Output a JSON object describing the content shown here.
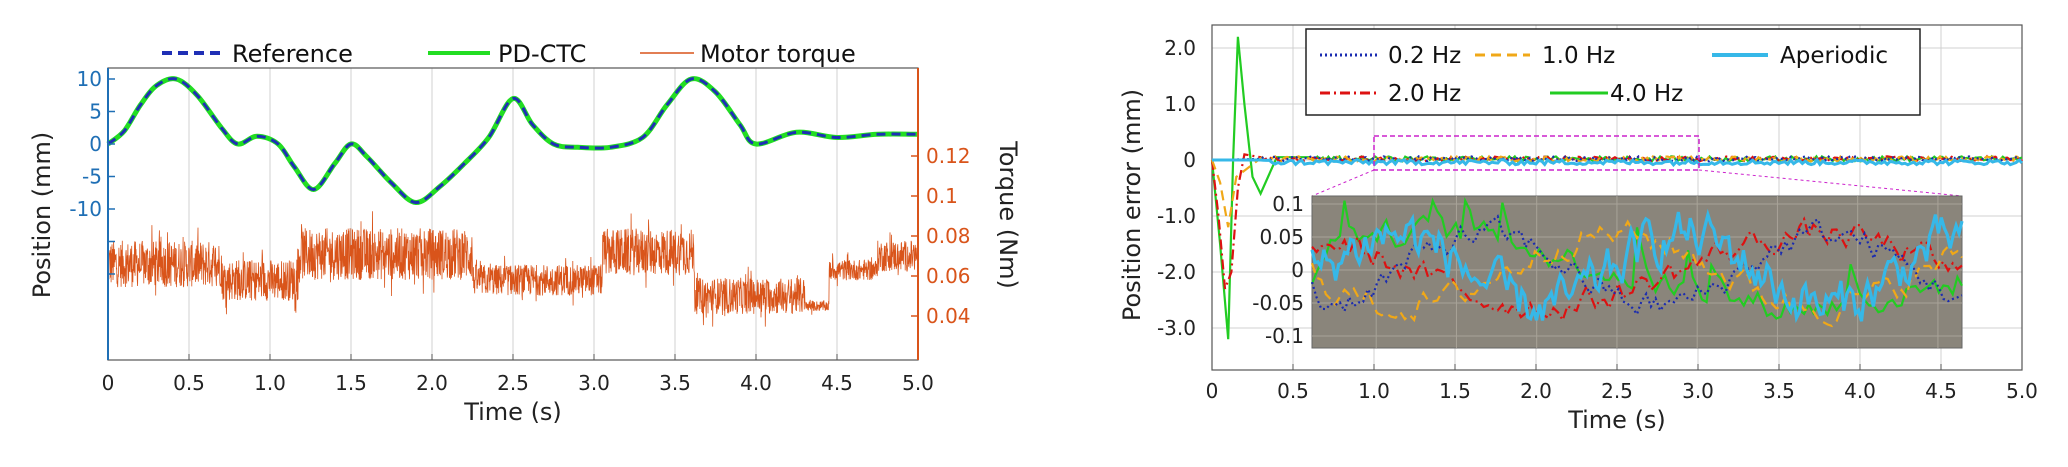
{
  "chart_data": [
    {
      "type": "line",
      "xlabel": "Time (s)",
      "ylabel_left": "Position (mm)",
      "ylabel_right": "Torque (Nm)",
      "xlim": [
        0,
        5
      ],
      "x_ticks": [
        "0",
        "0.5",
        "1.0",
        "1.5",
        "2.0",
        "2.5",
        "3.0",
        "3.5",
        "4.0",
        "4.5",
        "5.0"
      ],
      "y_left_ticks": [
        "10",
        "5",
        "0",
        "-5",
        "-10"
      ],
      "y_right_ticks": [
        "0.12",
        "0.1",
        "0.08",
        "0.06",
        "0.04"
      ],
      "legend": {
        "placement": "top",
        "items": [
          {
            "name": "Reference",
            "color": "#1f2fb5",
            "style": "dashed"
          },
          {
            "name": "PD-CTC",
            "color": "#22dd22",
            "style": "solid"
          },
          {
            "name": "Motor torque",
            "color": "#d9541a",
            "style": "solid"
          }
        ]
      },
      "series": [
        {
          "name": "Reference",
          "axis": "left",
          "x": [
            0,
            0.1,
            0.2,
            0.3,
            0.42,
            0.55,
            0.7,
            0.8,
            0.92,
            1.05,
            1.15,
            1.27,
            1.4,
            1.5,
            1.6,
            1.75,
            1.9,
            2.05,
            2.2,
            2.35,
            2.5,
            2.62,
            2.75,
            2.9,
            3.1,
            3.3,
            3.45,
            3.6,
            3.75,
            3.9,
            4.0,
            4.25,
            4.5,
            4.75,
            5.0
          ],
          "y": [
            0,
            2,
            6,
            9,
            10,
            7.5,
            2.5,
            0,
            1.2,
            0,
            -3.5,
            -7,
            -3,
            0,
            -2,
            -6,
            -9,
            -6.5,
            -3,
            1,
            7,
            3,
            0,
            -0.5,
            -0.5,
            1,
            6,
            10,
            8,
            3,
            0,
            1.8,
            1,
            1.5,
            1.5
          ]
        },
        {
          "name": "PD-CTC",
          "axis": "left",
          "x": [
            0,
            0.1,
            0.2,
            0.3,
            0.42,
            0.55,
            0.7,
            0.8,
            0.92,
            1.05,
            1.15,
            1.27,
            1.4,
            1.5,
            1.6,
            1.75,
            1.9,
            2.05,
            2.2,
            2.35,
            2.5,
            2.62,
            2.75,
            2.9,
            3.1,
            3.3,
            3.45,
            3.6,
            3.75,
            3.9,
            4.0,
            4.25,
            4.5,
            4.75,
            5.0
          ],
          "y": [
            0,
            2,
            6,
            9,
            10,
            7.5,
            2.5,
            0,
            1.2,
            0,
            -3.5,
            -7,
            -3,
            0,
            -2,
            -6,
            -9,
            -6.5,
            -3,
            1,
            7,
            3,
            0,
            -0.5,
            -0.5,
            1,
            6,
            10,
            8,
            3,
            0,
            1.8,
            1,
            1.5,
            1.5
          ]
        },
        {
          "name": "Motor torque",
          "axis": "right",
          "segments": [
            {
              "x": [
                0,
                0.7
              ],
              "mean": 0.066,
              "amp": 0.018
            },
            {
              "x": [
                0.7,
                1.18
              ],
              "mean": 0.058,
              "amp": 0.016
            },
            {
              "x": [
                1.18,
                2.25
              ],
              "mean": 0.071,
              "amp": 0.02
            },
            {
              "x": [
                2.25,
                3.05
              ],
              "mean": 0.058,
              "amp": 0.012
            },
            {
              "x": [
                3.05,
                3.62
              ],
              "mean": 0.072,
              "amp": 0.018
            },
            {
              "x": [
                3.62,
                4.3
              ],
              "mean": 0.05,
              "amp": 0.014
            },
            {
              "x": [
                4.3,
                4.45
              ],
              "mean": 0.045,
              "amp": 0.004
            },
            {
              "x": [
                4.45,
                4.75
              ],
              "mean": 0.063,
              "amp": 0.008
            },
            {
              "x": [
                4.75,
                5.0
              ],
              "mean": 0.07,
              "amp": 0.012
            }
          ]
        }
      ]
    },
    {
      "type": "line",
      "xlabel": "Time (s)",
      "ylabel": "Position error (mm)",
      "xlim": [
        0,
        5
      ],
      "ylim": [
        -3.3,
        2.3
      ],
      "x_ticks": [
        "0",
        "0.5",
        "1.0",
        "1.5",
        "2.0",
        "2.5",
        "3.0",
        "3.5",
        "4.0",
        "4.5",
        "5.0"
      ],
      "y_ticks": [
        "2.0",
        "1.0",
        "0",
        "-1.0",
        "-2.0",
        "-3.0"
      ],
      "grid": true,
      "legend": {
        "placement": "top",
        "items": [
          {
            "name": "0.2 Hz",
            "color": "#1a2bb0",
            "style": "dotted"
          },
          {
            "name": "1.0 Hz",
            "color": "#f0a818",
            "style": "dashed"
          },
          {
            "name": "Aperiodic",
            "color": "#36b8e8",
            "style": "solid"
          },
          {
            "name": "2.0 Hz",
            "color": "#dd1111",
            "style": "dashdot"
          },
          {
            "name": "4.0 Hz",
            "color": "#22cc22",
            "style": "solid"
          }
        ]
      },
      "series": [
        {
          "name": "4.0 Hz",
          "x": [
            0,
            0.05,
            0.1,
            0.13,
            0.16,
            0.2,
            0.25,
            0.3,
            0.4,
            0.6,
            5.0
          ],
          "y": [
            0,
            -1.5,
            -3.2,
            0,
            2.2,
            1.0,
            -0.3,
            -0.6,
            0.05,
            0.05,
            0.02
          ]
        },
        {
          "name": "2.0 Hz",
          "x": [
            0,
            0.04,
            0.08,
            0.12,
            0.16,
            0.2,
            0.3,
            5.0
          ],
          "y": [
            0,
            -1.0,
            -2.3,
            -2.0,
            -0.5,
            0.1,
            0.05,
            0.02
          ]
        },
        {
          "name": "1.0 Hz",
          "x": [
            0,
            0.05,
            0.1,
            0.15,
            0.3,
            5.0
          ],
          "y": [
            0,
            -0.4,
            -1.2,
            -0.3,
            0.03,
            0.02
          ]
        },
        {
          "name": "0.2 Hz",
          "x": [
            0,
            0.3,
            5.0
          ],
          "y": [
            0,
            0.02,
            0.0
          ]
        },
        {
          "name": "Aperiodic",
          "x": [
            0,
            0.3,
            5.0
          ],
          "y": [
            0,
            0.0,
            0.0
          ]
        }
      ],
      "inset": {
        "xlim": [
          1.0,
          3.0
        ],
        "ylim": [
          -0.12,
          0.12
        ],
        "y_ticks": [
          "0.1",
          "0.05",
          "0",
          "-0.05",
          "-0.1"
        ],
        "background": "#8a857b"
      }
    }
  ]
}
